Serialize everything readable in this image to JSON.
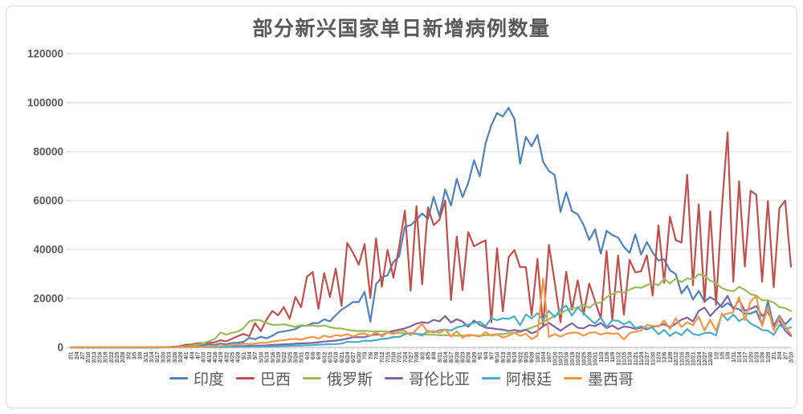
{
  "title": "部分新兴国家单日新增病例数量",
  "colors": {
    "title_text": "#595959",
    "axis_text": "#595959",
    "gridline": "#d9d9d9",
    "axis_line": "#bfbfbf",
    "frame_border": "#d9d9d9",
    "background": "#ffffff"
  },
  "chart_data": {
    "type": "line",
    "title": "部分新兴国家单日新增病例数量",
    "xlabel": "",
    "ylabel": "",
    "ylim": [
      0,
      120000
    ],
    "y_ticks": [
      0,
      20000,
      40000,
      60000,
      80000,
      100000,
      120000
    ],
    "y_tick_labels": [
      "0",
      "20000",
      "40000",
      "60000",
      "80000",
      "100000",
      "120000"
    ],
    "grid": "horizontal",
    "legend_position": "bottom",
    "x_tick_labels": [
      "2/1",
      "2/4",
      "2/7",
      "2/10",
      "2/13",
      "2/16",
      "2/19",
      "2/22",
      "2/25",
      "2/28",
      "3/2",
      "3/5",
      "3/8",
      "3/11",
      "3/14",
      "3/17",
      "3/20",
      "3/23",
      "3/26",
      "3/29",
      "4/1",
      "4/4",
      "4/7",
      "4/10",
      "4/13",
      "4/16",
      "4/19",
      "4/22",
      "4/25",
      "4/28",
      "5/1",
      "5/4",
      "5/7",
      "5/10",
      "5/13",
      "5/16",
      "5/19",
      "5/22",
      "5/25",
      "5/28",
      "5/31",
      "6/3",
      "6/6",
      "6/9",
      "6/12",
      "6/15",
      "6/18",
      "6/21",
      "6/24",
      "6/27",
      "6/30",
      "7/3",
      "7/6",
      "7/9",
      "7/12",
      "7/15",
      "7/18",
      "7/21",
      "7/24",
      "7/27",
      "7/30",
      "8/2",
      "8/5",
      "8/8",
      "8/11",
      "8/14",
      "8/17",
      "8/20",
      "8/23",
      "8/26",
      "8/29",
      "9/1",
      "9/4",
      "9/7",
      "9/10",
      "9/13",
      "9/16",
      "9/19",
      "9/22",
      "9/25",
      "9/28",
      "10/1",
      "10/4",
      "10/7",
      "10/10",
      "10/13",
      "10/16",
      "10/19",
      "10/22",
      "10/25",
      "10/28",
      "10/31",
      "11/3",
      "11/6",
      "11/9",
      "11/12",
      "11/15",
      "11/18",
      "11/21",
      "11/24",
      "11/27",
      "11/30",
      "12/3",
      "12/6",
      "12/9",
      "12/12",
      "12/15",
      "12/18",
      "12/21",
      "12/24",
      "12/27",
      "12/30",
      "1/2",
      "1/5",
      "1/8",
      "1/11",
      "1/14",
      "1/17",
      "1/20",
      "1/23",
      "1/26",
      "1/29",
      "2/1",
      "2/4",
      "2/7",
      "2/10"
    ],
    "series": [
      {
        "id": "india",
        "name": "印度",
        "color": "#4F81BD",
        "values": [
          0,
          0,
          0,
          0,
          0,
          0,
          0,
          0,
          0,
          0,
          5,
          10,
          5,
          10,
          20,
          30,
          60,
          100,
          120,
          150,
          350,
          500,
          700,
          870,
          1240,
          1060,
          1580,
          1290,
          1840,
          1900,
          2290,
          3900,
          3340,
          4350,
          3700,
          4790,
          6150,
          6530,
          6970,
          7460,
          8780,
          8900,
          9890,
          9980,
          11460,
          10670,
          13110,
          15410,
          16870,
          18550,
          18520,
          22770,
          10500,
          25790,
          28700,
          29430,
          34880,
          37150,
          49310,
          49930,
          52120,
          54740,
          52500,
          61540,
          53600,
          64550,
          57980,
          68900,
          61410,
          67150,
          76470,
          69920,
          83340,
          90800,
          95740,
          94370,
          97890,
          93340,
          75080,
          86050,
          82170,
          86820,
          75830,
          72050,
          70500,
          55340,
          63370,
          55720,
          54370,
          50130,
          43890,
          48270,
          38310,
          47640,
          45900,
          44870,
          41100,
          38620,
          46230,
          37970,
          43080,
          38770,
          35550,
          36010,
          31520,
          30010,
          22060,
          25150,
          19560,
          23070,
          18730,
          20550,
          19080,
          16380,
          18140,
          16310,
          15590,
          13790,
          13820,
          14850,
          9100,
          18860,
          8640,
          12900,
          9350,
          11830
        ]
      },
      {
        "id": "brazil",
        "name": "巴西",
        "color": "#C0504D",
        "values": [
          0,
          0,
          0,
          0,
          0,
          0,
          0,
          0,
          0,
          0,
          0,
          0,
          0,
          15,
          30,
          60,
          110,
          180,
          300,
          490,
          1100,
          1220,
          1660,
          1780,
          1830,
          2100,
          2920,
          2500,
          3500,
          4600,
          5500,
          4600,
          9900,
          6600,
          11400,
          14900,
          13100,
          16500,
          11700,
          20600,
          16400,
          28900,
          30800,
          15700,
          30400,
          20600,
          32200,
          17000,
          42700,
          38700,
          33800,
          42200,
          20200,
          44600,
          24800,
          39900,
          28500,
          41000,
          55900,
          23200,
          57800,
          25800,
          57200,
          49970,
          52160,
          60090,
          19370,
          45320,
          23420,
          47160,
          41350,
          42660,
          43770,
          10270,
          40560,
          14770,
          36820,
          39790,
          32820,
          32810,
          13160,
          36160,
          8460,
          41900,
          26750,
          10220,
          30910,
          15380,
          27440,
          13490,
          26100,
          18950,
          11840,
          39390,
          10920,
          37610,
          13370,
          35810,
          30620,
          31100,
          37610,
          21140,
          49860,
          26360,
          53450,
          43900,
          42890,
          70570,
          25370,
          58420,
          18480,
          55650,
          17340,
          56650,
          87840,
          26820,
          67860,
          33040,
          64030,
          62330,
          26820,
          59830,
          24590,
          56870,
          60000,
          33000
        ]
      },
      {
        "id": "russia",
        "name": "俄罗斯",
        "color": "#9BBB59",
        "values": [
          0,
          0,
          0,
          0,
          0,
          0,
          0,
          0,
          0,
          0,
          0,
          0,
          0,
          5,
          10,
          15,
          30,
          60,
          120,
          270,
          500,
          770,
          1150,
          1670,
          2560,
          3450,
          6060,
          5240,
          5960,
          6410,
          7930,
          10630,
          11230,
          11010,
          9970,
          9200,
          9260,
          9430,
          8950,
          8370,
          9090,
          8830,
          8970,
          8590,
          8990,
          8250,
          7790,
          7730,
          7180,
          6850,
          6690,
          6760,
          6630,
          6510,
          6610,
          6420,
          6110,
          5840,
          5810,
          5600,
          5480,
          5430,
          5200,
          5190,
          4950,
          5060,
          4890,
          4780,
          4850,
          4710,
          4940,
          4730,
          5010,
          5110,
          5450,
          5450,
          5760,
          6070,
          6200,
          7210,
          8130,
          8950,
          10500,
          11620,
          12850,
          13870,
          15150,
          15980,
          16320,
          17350,
          16200,
          18140,
          18260,
          20580,
          21800,
          22780,
          22410,
          23610,
          24580,
          24330,
          25490,
          26340,
          25350,
          28140,
          26190,
          28080,
          26690,
          28210,
          27790,
          29940,
          29260,
          27240,
          26300,
          24250,
          23350,
          22930,
          24720,
          23590,
          21730,
          21150,
          19290,
          19240,
          18360,
          16470,
          16050,
          14860
        ]
      },
      {
        "id": "colombia",
        "name": "哥伦比亚",
        "color": "#8064A2",
        "values": [
          0,
          0,
          0,
          0,
          0,
          0,
          0,
          0,
          0,
          0,
          0,
          0,
          0,
          0,
          5,
          15,
          45,
          90,
          150,
          230,
          300,
          280,
          250,
          330,
          270,
          350,
          290,
          400,
          480,
          500,
          560,
          640,
          700,
          770,
          830,
          1000,
          1100,
          1250,
          1300,
          1500,
          1640,
          1700,
          1850,
          2100,
          2390,
          2600,
          2800,
          3100,
          3540,
          4150,
          4160,
          4200,
          4900,
          5300,
          5030,
          6060,
          6800,
          7200,
          7800,
          8600,
          9700,
          10280,
          9970,
          11290,
          10610,
          12830,
          10170,
          11540,
          10550,
          8420,
          10990,
          9230,
          8060,
          7820,
          7460,
          7230,
          6700,
          7110,
          6670,
          7290,
          5780,
          6640,
          8770,
          9970,
          8430,
          6820,
          8430,
          9890,
          8040,
          7760,
          9100,
          8720,
          9980,
          7920,
          8980,
          7460,
          8520,
          8270,
          7550,
          8050,
          7390,
          8430,
          8790,
          9500,
          8340,
          9690,
          11360,
          12200,
          10600,
          14940,
          16310,
          12830,
          15430,
          17570,
          21080,
          15600,
          19480,
          14940,
          15830,
          16870,
          12930,
          14620,
          9340,
          10930,
          6850,
          4630
        ]
      },
      {
        "id": "argentina",
        "name": "阿根廷",
        "color": "#4BACC6",
        "values": [
          0,
          0,
          0,
          0,
          0,
          0,
          0,
          0,
          0,
          0,
          0,
          0,
          0,
          0,
          5,
          10,
          30,
          60,
          90,
          110,
          90,
          120,
          100,
          160,
          110,
          140,
          130,
          170,
          200,
          230,
          260,
          220,
          280,
          300,
          350,
          400,
          440,
          600,
          700,
          720,
          800,
          900,
          930,
          1100,
          1220,
          1290,
          1390,
          1580,
          2300,
          2190,
          2260,
          2740,
          2670,
          2980,
          3450,
          3640,
          4250,
          4230,
          5340,
          5930,
          5640,
          4820,
          6790,
          6130,
          7040,
          7270,
          6840,
          8180,
          8710,
          9230,
          10100,
          10500,
          8690,
          11910,
          11130,
          11890,
          11670,
          12700,
          9050,
          13470,
          11810,
          14000,
          11240,
          14930,
          12410,
          15450,
          17100,
          12980,
          16320,
          13930,
          11740,
          9740,
          12150,
          8320,
          11100,
          10880,
          9430,
          10630,
          7890,
          8590,
          7850,
          8030,
          5300,
          7140,
          4650,
          6290,
          5060,
          7500,
          5470,
          5030,
          5880,
          6020,
          4930,
          13780,
          11060,
          13440,
          10740,
          12110,
          9690,
          8610,
          7120,
          6850,
          5130,
          9190,
          7580,
          8180
        ]
      },
      {
        "id": "mexico",
        "name": "墨西哥",
        "color": "#F79646",
        "values": [
          0,
          0,
          0,
          0,
          0,
          0,
          0,
          0,
          0,
          0,
          0,
          0,
          0,
          0,
          5,
          10,
          20,
          40,
          65,
          100,
          120,
          180,
          260,
          300,
          380,
          450,
          550,
          730,
          970,
          1220,
          1520,
          1350,
          1610,
          1940,
          1860,
          2440,
          2710,
          2960,
          3330,
          3460,
          3150,
          3910,
          4350,
          3600,
          4790,
          4150,
          5020,
          4720,
          5440,
          4410,
          5430,
          5680,
          4680,
          6290,
          4480,
          6150,
          5450,
          6740,
          6750,
          4970,
          7280,
          9560,
          6140,
          6720,
          5860,
          7370,
          4450,
          6590,
          3950,
          5270,
          4920,
          4410,
          6200,
          4770,
          5270,
          4040,
          4770,
          5980,
          4680,
          5570,
          3400,
          4770,
          28120,
          4300,
          5440,
          4360,
          5510,
          6050,
          6030,
          4790,
          5940,
          6150,
          5250,
          5930,
          5560,
          5750,
          3250,
          5870,
          6430,
          6870,
          9190,
          8820,
          8470,
          11030,
          7460,
          11970,
          8290,
          10290,
          9040,
          12510,
          6960,
          11240,
          6870,
          13340,
          13730,
          14390,
          20520,
          11170,
          18810,
          21010,
          8670,
          16370,
          7030,
          12150,
          8640,
          5330
        ]
      }
    ]
  }
}
